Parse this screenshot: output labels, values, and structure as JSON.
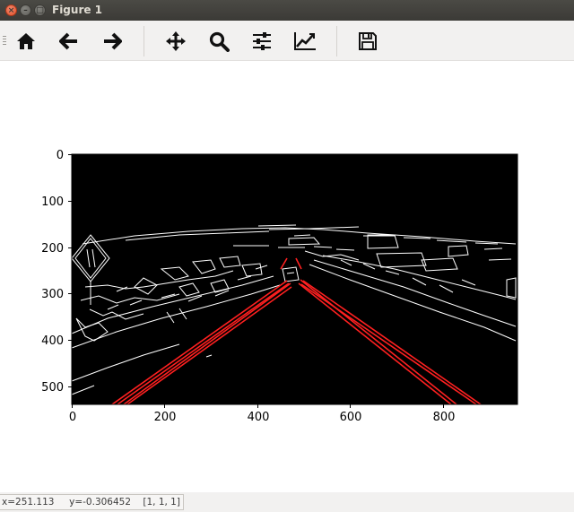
{
  "window": {
    "title": "Figure 1"
  },
  "toolbar": {
    "buttons": [
      {
        "name": "home-button",
        "icon": "home-icon"
      },
      {
        "name": "back-button",
        "icon": "arrow-left-icon"
      },
      {
        "name": "forward-button",
        "icon": "arrow-right-icon"
      },
      {
        "name": "pan-button",
        "icon": "move-icon"
      },
      {
        "name": "zoom-button",
        "icon": "magnifier-icon"
      },
      {
        "name": "subplots-button",
        "icon": "sliders-icon"
      },
      {
        "name": "edit-axes-button",
        "icon": "line-chart-icon"
      },
      {
        "name": "save-button",
        "icon": "floppy-disk-icon"
      }
    ]
  },
  "plot": {
    "x_ticks": [
      "0",
      "200",
      "400",
      "600",
      "800"
    ],
    "y_ticks": [
      "0",
      "100",
      "200",
      "300",
      "400",
      "500"
    ],
    "colors": {
      "background": "#000000",
      "edges": "#ffffff",
      "lanes": "#ff0000"
    }
  },
  "status": {
    "text": "x=251.113     y=-0.306452    [1, 1, 1]"
  }
}
